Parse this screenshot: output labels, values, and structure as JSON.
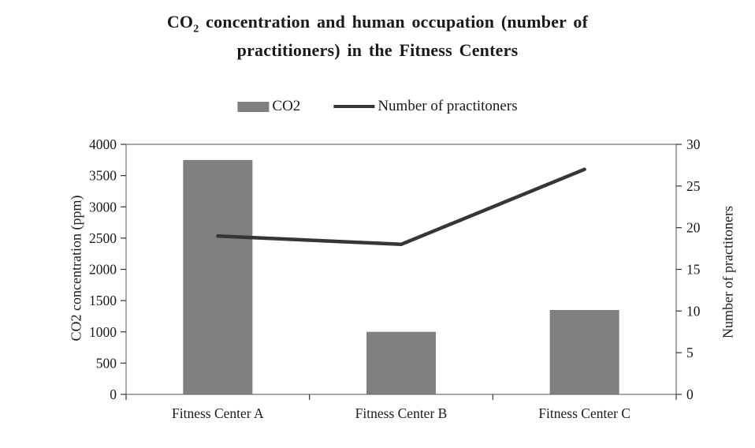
{
  "title": {
    "prefix": "CO",
    "sub": "2",
    "rest_line1": " concentration and human occupation (number of",
    "line2": "practitioners) in the Fitness Centers"
  },
  "legend": {
    "co2": "CO2",
    "practitioners": "Number of practitoners"
  },
  "chart_data": {
    "type": "combo_bar_line",
    "title": "CO2 concentration and human occupation (number of practitioners) in the Fitness Centers",
    "categories": [
      "Fitness Center A",
      "Fitness Center B",
      "Fitness Center C"
    ],
    "series": [
      {
        "name": "CO2",
        "type": "bar",
        "axis": "left",
        "values": [
          3750,
          1000,
          1350
        ],
        "color": "#808080"
      },
      {
        "name": "Number of practitoners",
        "type": "line",
        "axis": "right",
        "values": [
          19,
          18,
          27
        ],
        "color": "#363636"
      }
    ],
    "ylabel_left": "CO2 concentration (ppm)",
    "ylabel_right": "Number of practitoners",
    "left_axis": {
      "min": 0,
      "max": 4000,
      "step": 500
    },
    "right_axis": {
      "min": 0,
      "max": 30,
      "step": 5
    },
    "grid": false,
    "legend_position": "top",
    "plot_border_color": "#6e6e6e"
  }
}
